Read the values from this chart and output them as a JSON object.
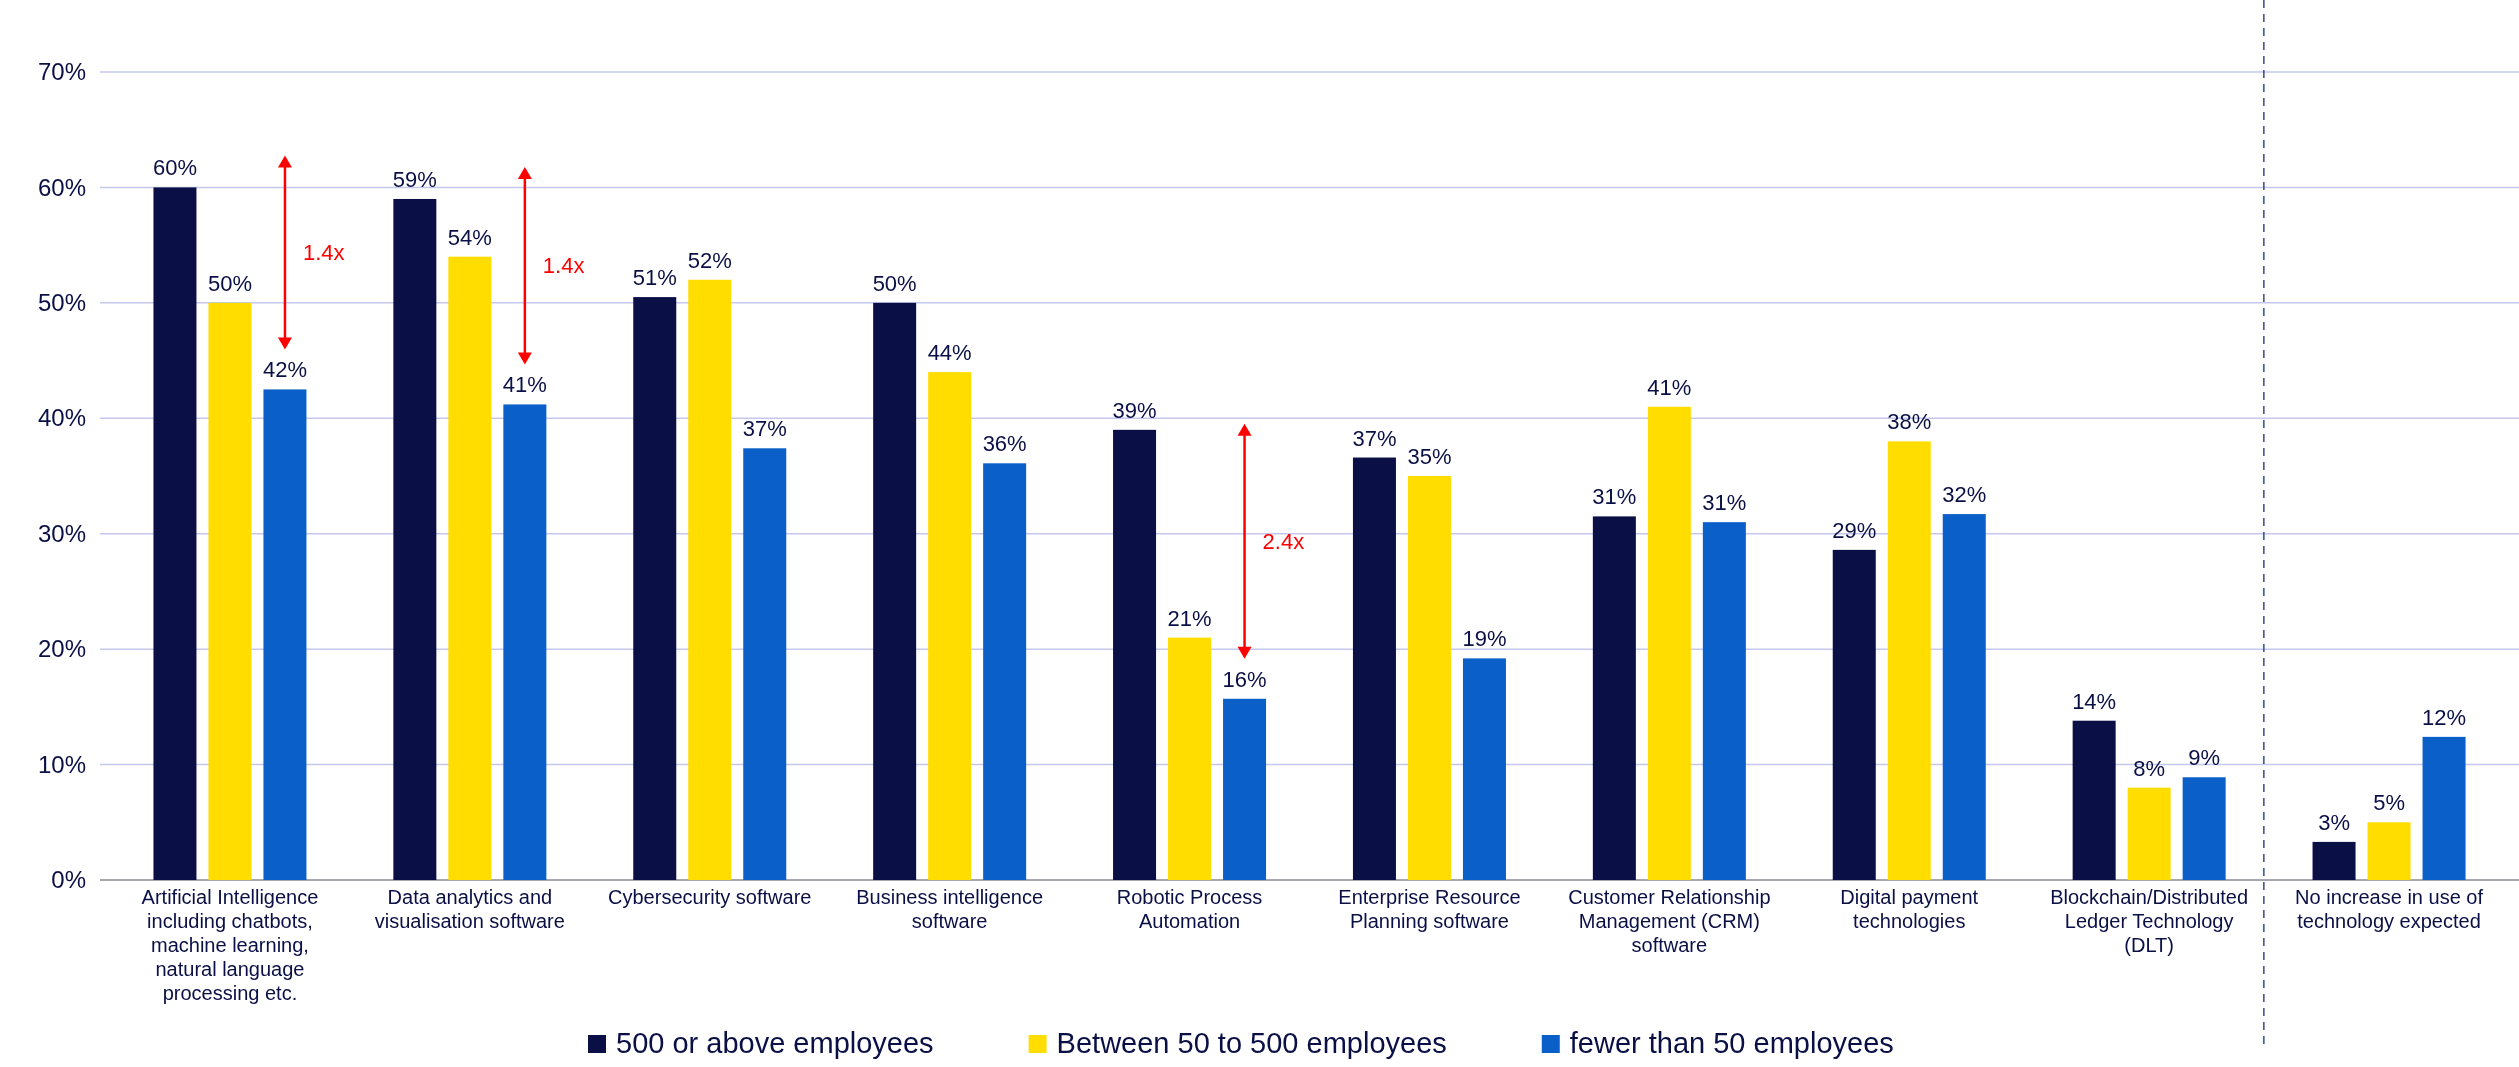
{
  "chart_data": {
    "type": "bar",
    "categories": [
      "Artificial Intelligence including chatbots, machine learning, natural language processing etc.",
      "Data analytics and visualisation software",
      "Cybersecurity software",
      "Business intelligence software",
      "Robotic Process Automation",
      "Enterprise Resource Planning software",
      "Customer Relationship Management (CRM) software",
      "Digital payment technologies",
      "Blockchain/Distributed Ledger Technology (DLT)",
      "No increase in use of technology expected"
    ],
    "series": [
      {
        "name": "500 or above employees",
        "color": "#0a0f45",
        "values": [
          60,
          59,
          50.5,
          50,
          39,
          36.6,
          31.5,
          28.6,
          13.8,
          3.3
        ],
        "value_labels": [
          "60%",
          "59%",
          "51%",
          "50%",
          "39%",
          "37%",
          "31%",
          "29%",
          "14%",
          "3%"
        ]
      },
      {
        "name": "Between 50 to 500 employees",
        "color": "#ffdd00",
        "values": [
          50,
          54,
          52,
          44,
          21,
          35,
          41,
          38,
          8,
          5
        ],
        "value_labels": [
          "50%",
          "54%",
          "52%",
          "44%",
          "21%",
          "35%",
          "41%",
          "38%",
          "8%",
          "5%"
        ]
      },
      {
        "name": "fewer than 50 employees",
        "color": "#0a5fc8",
        "values": [
          42.5,
          41.2,
          37.4,
          36.1,
          15.7,
          19.2,
          31,
          31.7,
          8.9,
          12.4
        ],
        "value_labels": [
          "42%",
          "41%",
          "37%",
          "36%",
          "16%",
          "19%",
          "31%",
          "32%",
          "9%",
          "12%"
        ]
      }
    ],
    "ylim": [
      0,
      70
    ],
    "yticks": [
      {
        "value": 0,
        "label": "0%"
      },
      {
        "value": 10,
        "label": "10%"
      },
      {
        "value": 20,
        "label": "20%"
      },
      {
        "value": 30,
        "label": "30%"
      },
      {
        "value": 40,
        "label": "40%"
      },
      {
        "value": 50,
        "label": "50%"
      },
      {
        "value": 60,
        "label": "60%"
      },
      {
        "value": 70,
        "label": "70%"
      }
    ],
    "grid": "y",
    "legend": "bottom",
    "annotations": [
      "1.4x",
      "1.4x",
      "2.4x"
    ]
  }
}
